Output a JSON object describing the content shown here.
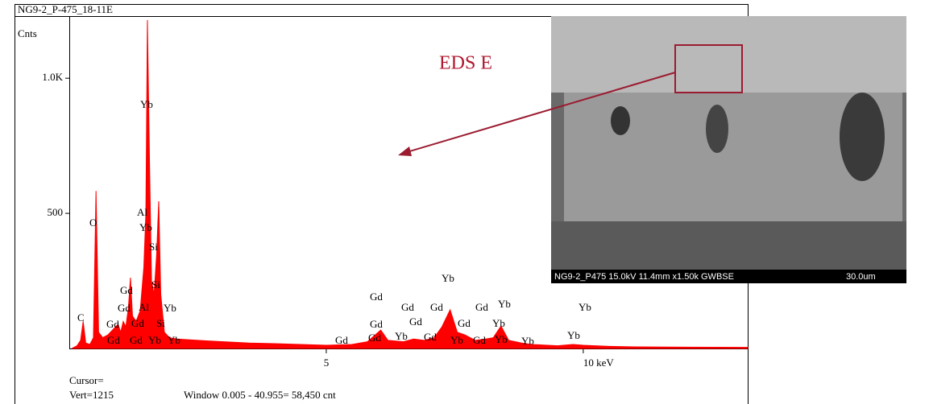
{
  "chart_data": {
    "type": "area",
    "title": "NG9-2_P-475_18-11E",
    "y_label": "Cnts",
    "color": "#ff0000",
    "x": [
      0.05,
      0.15,
      0.22,
      0.27,
      0.32,
      0.4,
      0.47,
      0.52,
      0.57,
      0.65,
      0.75,
      0.85,
      0.95,
      1.0,
      1.05,
      1.1,
      1.15,
      1.19,
      1.23,
      1.3,
      1.38,
      1.45,
      1.49,
      1.52,
      1.56,
      1.6,
      1.65,
      1.7,
      1.74,
      1.78,
      1.85,
      1.95,
      2.1,
      2.5,
      3.0,
      3.5,
      4.0,
      4.5,
      5.0,
      5.5,
      5.8,
      6.06,
      6.2,
      6.5,
      6.7,
      6.9,
      7.1,
      7.25,
      7.41,
      7.55,
      7.7,
      7.9,
      8.1,
      8.25,
      8.4,
      8.55,
      8.8,
      9.0,
      9.5,
      9.8,
      10.0,
      10.5,
      11,
      12,
      13.2
    ],
    "values": [
      0,
      10,
      30,
      100,
      20,
      15,
      40,
      583,
      60,
      40,
      50,
      70,
      90,
      60,
      100,
      80,
      150,
      262,
      120,
      100,
      140,
      300,
      500,
      1215,
      700,
      250,
      200,
      350,
      545,
      200,
      60,
      40,
      35,
      30,
      25,
      20,
      18,
      15,
      12,
      15,
      25,
      68,
      30,
      25,
      35,
      30,
      40,
      80,
      143,
      60,
      50,
      30,
      35,
      40,
      83,
      30,
      20,
      15,
      10,
      15,
      12,
      8,
      6,
      5,
      4
    ],
    "xlim": [
      0,
      13.2
    ],
    "ylim": [
      0,
      1215
    ],
    "xticks": [
      5,
      {
        "value": 10,
        "label": "10 keV"
      }
    ],
    "yticks": [
      500,
      {
        "value": 1000,
        "label": "1.0K"
      }
    ],
    "peak_labels": [
      "Yb",
      "Al",
      "Yb",
      "Si",
      "Si",
      "O",
      "Gd",
      "Gd",
      "Al",
      "Yb",
      "C",
      "Gd",
      "Gd",
      "Si",
      "Gd",
      "Gd",
      "Yb",
      "Yb",
      "Gd",
      "Gd",
      "Gd",
      "Gd",
      "Yb",
      "Yb",
      "Yb",
      "Gd",
      "Gd",
      "Gd",
      "Yb",
      "Gd",
      "Gd",
      "Yb",
      "Gd",
      "Yb",
      "Gd",
      "Yb",
      "Yb",
      "Yb"
    ],
    "cursor": "Cursor=",
    "vert": "Vert=1215",
    "window": "Window 0.005 - 40.955=   58,450 cnt"
  },
  "image": {
    "caption": "NG9-2_P475 15.0kV 11.4mm x1.50k GWBSE",
    "scale": "30.0um",
    "annotation": "EDS E"
  }
}
